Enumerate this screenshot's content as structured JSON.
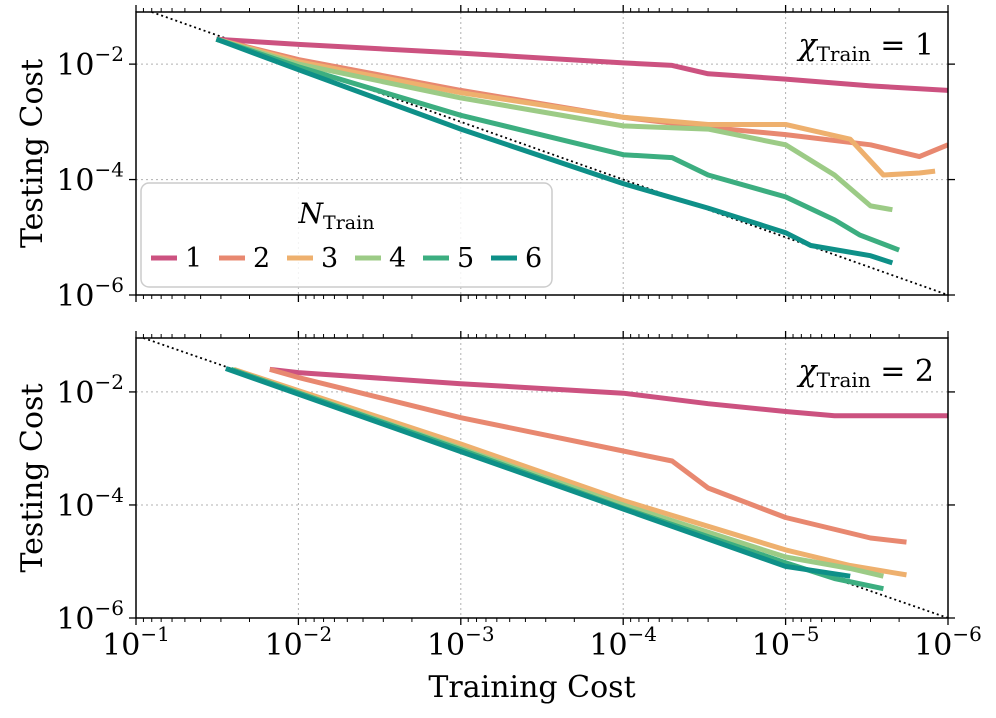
{
  "chart_data": [
    {
      "type": "line",
      "panel": "top",
      "annotation": "χTrain = 1",
      "annotation_parts": {
        "chi": "χ",
        "sub": "Train",
        "rest": " = 1"
      },
      "xlabel": "",
      "ylabel": "Testing Cost",
      "xscale": "log",
      "yscale": "log",
      "x_inverted": true,
      "xlim": [
        0.1,
        1e-06
      ],
      "ylim": [
        1e-06,
        0.08
      ],
      "yticks": [
        {
          "value": 0.01,
          "base": "10",
          "exp": "−2"
        },
        {
          "value": 0.0001,
          "base": "10",
          "exp": "−4"
        },
        {
          "value": 1e-06,
          "base": "10",
          "exp": "−6"
        }
      ],
      "grid": true,
      "reference_line": "y = x",
      "legend": {
        "title": "N",
        "title_sub": "Train",
        "position": "lower-left",
        "entries": [
          "1",
          "2",
          "3",
          "4",
          "5",
          "6"
        ]
      },
      "series": [
        {
          "name": "1",
          "color": "#cc5280",
          "points": [
            [
              0.032,
              0.027
            ],
            [
              0.01,
              0.022
            ],
            [
              0.001,
              0.0155
            ],
            [
              0.0001,
              0.0105
            ],
            [
              5e-05,
              0.0095
            ],
            [
              3e-05,
              0.0068
            ],
            [
              1e-05,
              0.0055
            ],
            [
              3e-06,
              0.0042
            ],
            [
              1e-06,
              0.0035
            ]
          ]
        },
        {
          "name": "2",
          "color": "#e88870",
          "points": [
            [
              0.032,
              0.027
            ],
            [
              0.01,
              0.012
            ],
            [
              0.001,
              0.0035
            ],
            [
              0.0001,
              0.0012
            ],
            [
              3e-05,
              0.0008
            ],
            [
              1e-05,
              0.0006
            ],
            [
              3e-06,
              0.0004
            ],
            [
              1.5e-06,
              0.00025
            ],
            [
              1e-06,
              0.0004
            ]
          ]
        },
        {
          "name": "3",
          "color": "#eeb06e",
          "points": [
            [
              0.032,
              0.027
            ],
            [
              0.01,
              0.011
            ],
            [
              0.001,
              0.0032
            ],
            [
              0.0001,
              0.0012
            ],
            [
              3e-05,
              0.0009
            ],
            [
              1e-05,
              0.0009
            ],
            [
              4e-06,
              0.0005
            ],
            [
              2.5e-06,
              0.00012
            ],
            [
              1.5e-06,
              0.00013
            ],
            [
              1.2e-06,
              0.00014
            ]
          ]
        },
        {
          "name": "4",
          "color": "#9ccb86",
          "points": [
            [
              0.032,
              0.027
            ],
            [
              0.01,
              0.01
            ],
            [
              0.001,
              0.0026
            ],
            [
              0.0001,
              0.00085
            ],
            [
              3e-05,
              0.00075
            ],
            [
              1e-05,
              0.0004
            ],
            [
              5e-06,
              0.00012
            ],
            [
              3e-06,
              3.5e-05
            ],
            [
              2.2e-06,
              3e-05
            ]
          ]
        },
        {
          "name": "5",
          "color": "#3cae80",
          "points": [
            [
              0.032,
              0.027
            ],
            [
              0.01,
              0.009
            ],
            [
              0.001,
              0.0013
            ],
            [
              0.0001,
              0.00027
            ],
            [
              5e-05,
              0.00024
            ],
            [
              3e-05,
              0.00012
            ],
            [
              1e-05,
              5e-05
            ],
            [
              5e-06,
              2e-05
            ],
            [
              3.5e-06,
              1.1e-05
            ],
            [
              2e-06,
              6e-06
            ]
          ]
        },
        {
          "name": "6",
          "color": "#0e9088",
          "points": [
            [
              0.032,
              0.027
            ],
            [
              0.01,
              0.008
            ],
            [
              0.001,
              0.00075
            ],
            [
              0.0001,
              8.5e-05
            ],
            [
              3e-05,
              3.2e-05
            ],
            [
              1e-05,
              1.2e-05
            ],
            [
              7e-06,
              7.2e-06
            ],
            [
              3e-06,
              4.8e-06
            ],
            [
              2.2e-06,
              3.6e-06
            ]
          ]
        }
      ]
    },
    {
      "type": "line",
      "panel": "bottom",
      "annotation": "χTrain = 2",
      "annotation_parts": {
        "chi": "χ",
        "sub": "Train",
        "rest": " = 2"
      },
      "xlabel": "Training Cost",
      "ylabel": "Testing Cost",
      "xscale": "log",
      "yscale": "log",
      "x_inverted": true,
      "xlim": [
        0.1,
        1e-06
      ],
      "ylim": [
        1e-06,
        0.09
      ],
      "xticks": [
        {
          "value": 0.1,
          "base": "10",
          "exp": "−1"
        },
        {
          "value": 0.01,
          "base": "10",
          "exp": "−2"
        },
        {
          "value": 0.001,
          "base": "10",
          "exp": "−3"
        },
        {
          "value": 0.0001,
          "base": "10",
          "exp": "−4"
        },
        {
          "value": 1e-05,
          "base": "10",
          "exp": "−5"
        },
        {
          "value": 1e-06,
          "base": "10",
          "exp": "−6"
        }
      ],
      "yticks": [
        {
          "value": 0.01,
          "base": "10",
          "exp": "−2"
        },
        {
          "value": 0.0001,
          "base": "10",
          "exp": "−4"
        },
        {
          "value": 1e-06,
          "base": "10",
          "exp": "−6"
        }
      ],
      "grid": true,
      "reference_line": "y = x",
      "series": [
        {
          "name": "1",
          "color": "#cc5280",
          "points": [
            [
              0.015,
              0.025
            ],
            [
              0.01,
              0.022
            ],
            [
              0.001,
              0.014
            ],
            [
              0.0001,
              0.0095
            ],
            [
              3e-05,
              0.0062
            ],
            [
              1e-05,
              0.0045
            ],
            [
              5e-06,
              0.0038
            ],
            [
              1e-06,
              0.0038
            ]
          ]
        },
        {
          "name": "2",
          "color": "#e88870",
          "points": [
            [
              0.015,
              0.025
            ],
            [
              0.01,
              0.018
            ],
            [
              0.001,
              0.0035
            ],
            [
              0.0001,
              0.0009
            ],
            [
              5e-05,
              0.0006
            ],
            [
              3e-05,
              0.0002
            ],
            [
              1e-05,
              6e-05
            ],
            [
              3e-06,
              2.6e-05
            ],
            [
              1.8e-06,
              2.2e-05
            ]
          ]
        },
        {
          "name": "3",
          "color": "#eeb06e",
          "points": [
            [
              0.025,
              0.025
            ],
            [
              0.001,
              0.0012
            ],
            [
              0.0001,
              0.00012
            ],
            [
              3e-05,
              4.2e-05
            ],
            [
              1e-05,
              1.6e-05
            ],
            [
              4e-06,
              8.5e-06
            ],
            [
              1.8e-06,
              5.8e-06
            ]
          ]
        },
        {
          "name": "4",
          "color": "#9ccb86",
          "points": [
            [
              0.026,
              0.025
            ],
            [
              0.001,
              0.001
            ],
            [
              0.0001,
              0.0001
            ],
            [
              1e-05,
              1.2e-05
            ],
            [
              4e-06,
              7.5e-06
            ],
            [
              2.5e-06,
              5.5e-06
            ]
          ]
        },
        {
          "name": "5",
          "color": "#3cae80",
          "points": [
            [
              0.026,
              0.025
            ],
            [
              0.001,
              0.00095
            ],
            [
              0.0001,
              8.8e-05
            ],
            [
              1e-05,
              9.5e-06
            ],
            [
              5e-06,
              5e-06
            ],
            [
              2.5e-06,
              3.3e-06
            ]
          ]
        },
        {
          "name": "6",
          "color": "#0e9088",
          "points": [
            [
              0.028,
              0.026
            ],
            [
              0.001,
              0.00088
            ],
            [
              0.0001,
              8.5e-05
            ],
            [
              1e-05,
              8.2e-06
            ],
            [
              4e-06,
              5.5e-06
            ]
          ]
        }
      ]
    }
  ]
}
